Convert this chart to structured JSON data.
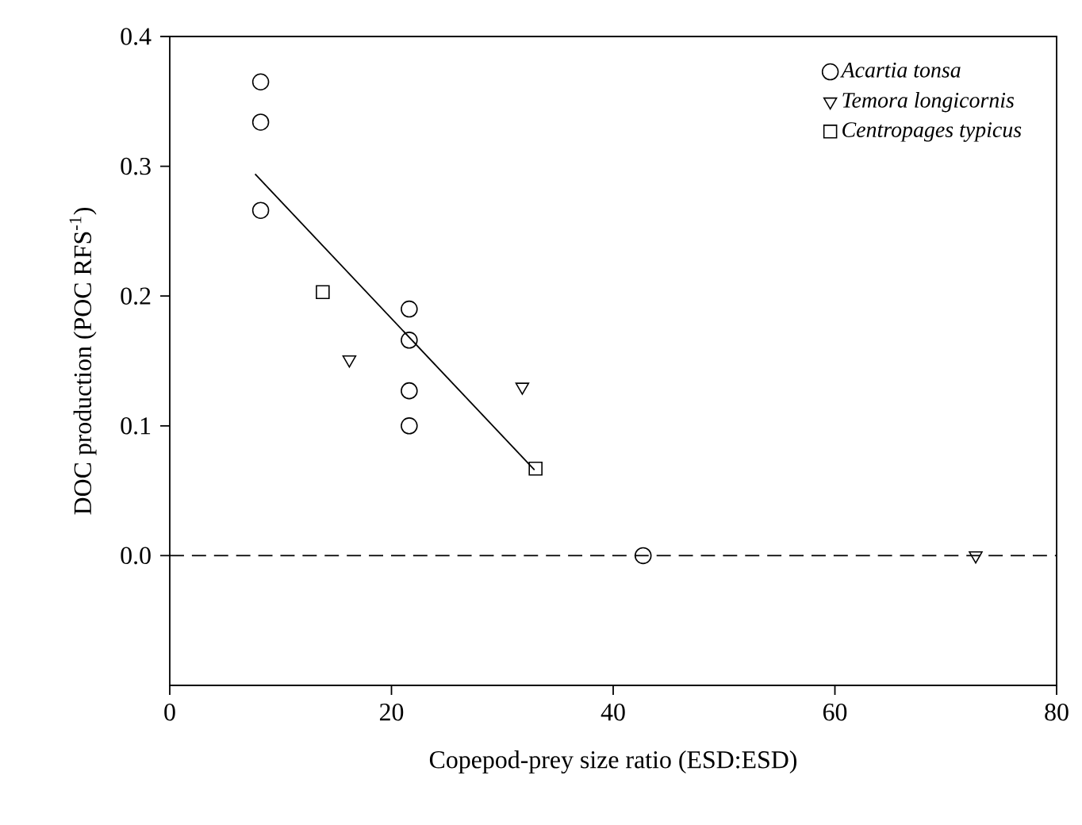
{
  "chart_data": {
    "type": "scatter",
    "xlabel": "Copepod-prey size ratio (ESD:ESD)",
    "ylabel": "DOC production (POC RFS$^{-1}$)",
    "xlim": [
      0,
      80
    ],
    "xticks": [
      0,
      20,
      40,
      60,
      80
    ],
    "ylim": [
      -0.1,
      0.4
    ],
    "yticks": [
      {
        "value": 0,
        "label": "0.0"
      },
      {
        "value": 0.1,
        "label": "0.1"
      },
      {
        "value": 0.2,
        "label": "0.2"
      },
      {
        "value": 0.3,
        "label": "0.3"
      },
      {
        "value": 0.4,
        "label": "0.4"
      }
    ],
    "legend": "top right",
    "grid": false,
    "series": [
      {
        "name": "*Acartia tonsa*",
        "color": "#000000",
        "marker": "circle",
        "x": [
          8.2,
          8.2,
          8.2,
          21.6,
          21.6,
          21.6,
          21.6,
          42.7
        ],
        "values": [
          0.365,
          0.334,
          0.266,
          0.19,
          0.166,
          0.127,
          0.1,
          0
        ]
      },
      {
        "name": "*Temora longicornis*",
        "color": "#000000",
        "marker": "triangle",
        "x": [
          16.2,
          31.8,
          72.7
        ],
        "values": [
          0.151,
          0.13,
          0
        ]
      },
      {
        "name": "*Centropages typicus*",
        "color": "#000000",
        "marker": "square",
        "x": [
          13.8,
          33.0
        ],
        "values": [
          0.203,
          0.067
        ]
      },
      {
        "type": "line",
        "color": "#000000",
        "marker": "none",
        "line_style": "solid",
        "x": [
          7.7,
          32.9
        ],
        "values": [
          0.294,
          0.066
        ]
      }
    ],
    "ref_lines": [
      {
        "axis": "y",
        "value": 0,
        "line_style": "dashed",
        "color": "#000000"
      }
    ]
  }
}
